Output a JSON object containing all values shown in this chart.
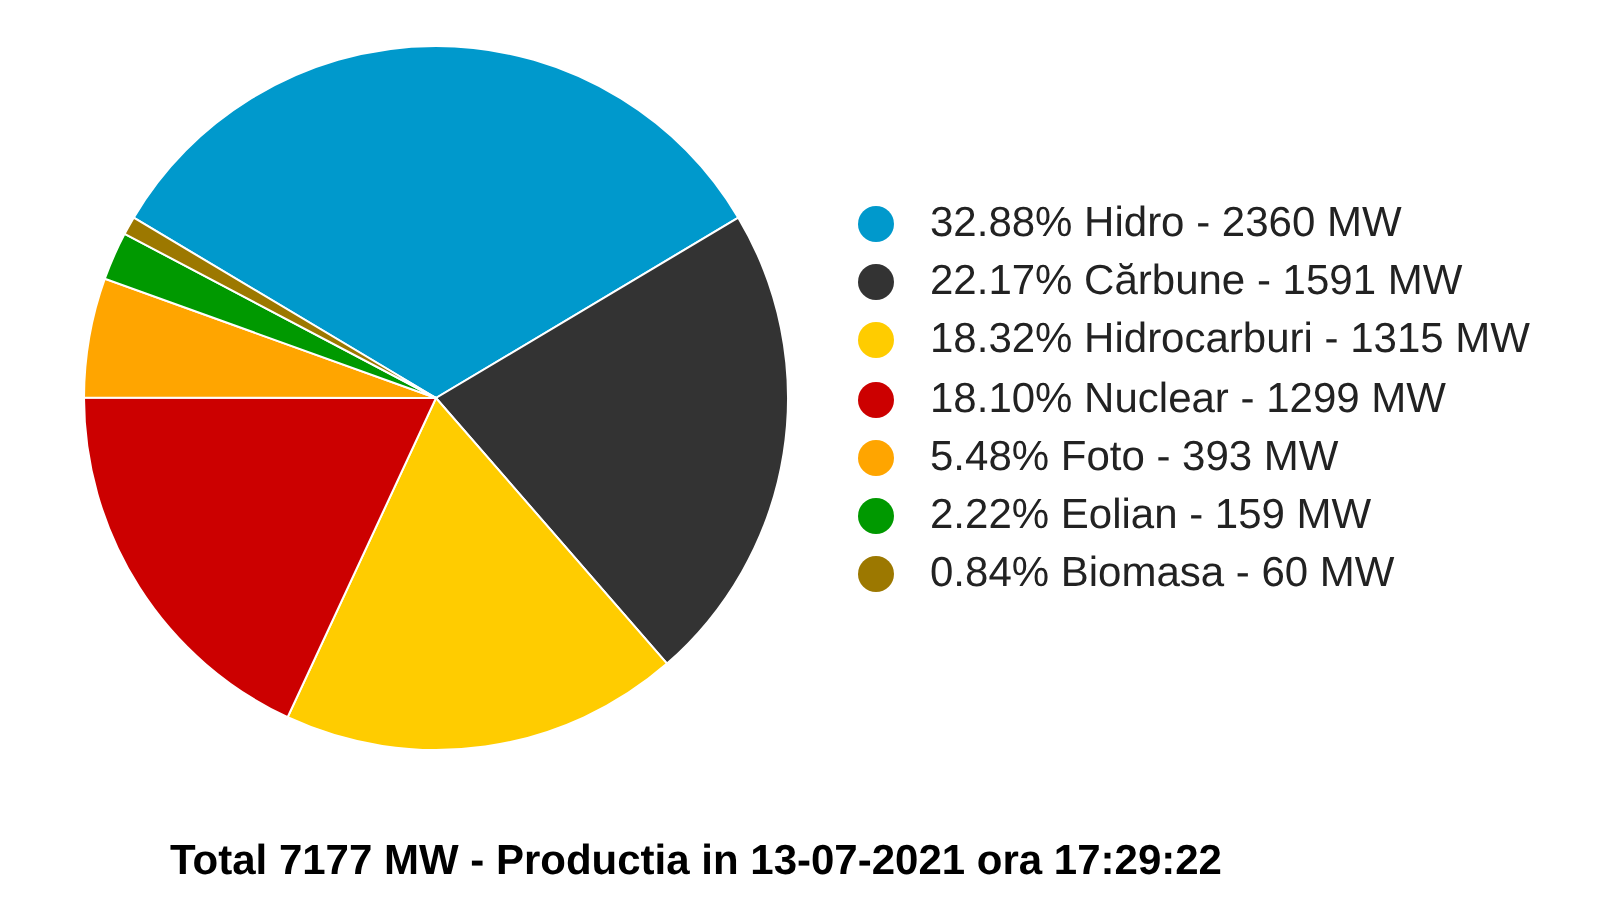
{
  "chart_data": {
    "type": "pie",
    "title": "Total 7177 MW - Productia in 13-07-2021 ora 17:29:22",
    "categories": [
      "32.88% Hidro - 2360 MW",
      "22.17% Cărbune - 1591 MW",
      "18.32% Hidrocarburi - 1315 MW",
      "18.10% Nuclear - 1299 MW",
      "5.48% Foto - 393 MW",
      "2.22% Eolian - 159 MW",
      "0.84% Biomasa - 60 MW"
    ],
    "values": [
      32.88,
      22.17,
      18.32,
      18.1,
      5.48,
      2.22,
      0.84
    ],
    "colors": [
      "#0099cc",
      "#333333",
      "#ffcc00",
      "#cc0000",
      "#ffa500",
      "#009900",
      "#9c7800"
    ],
    "legend": "right"
  }
}
